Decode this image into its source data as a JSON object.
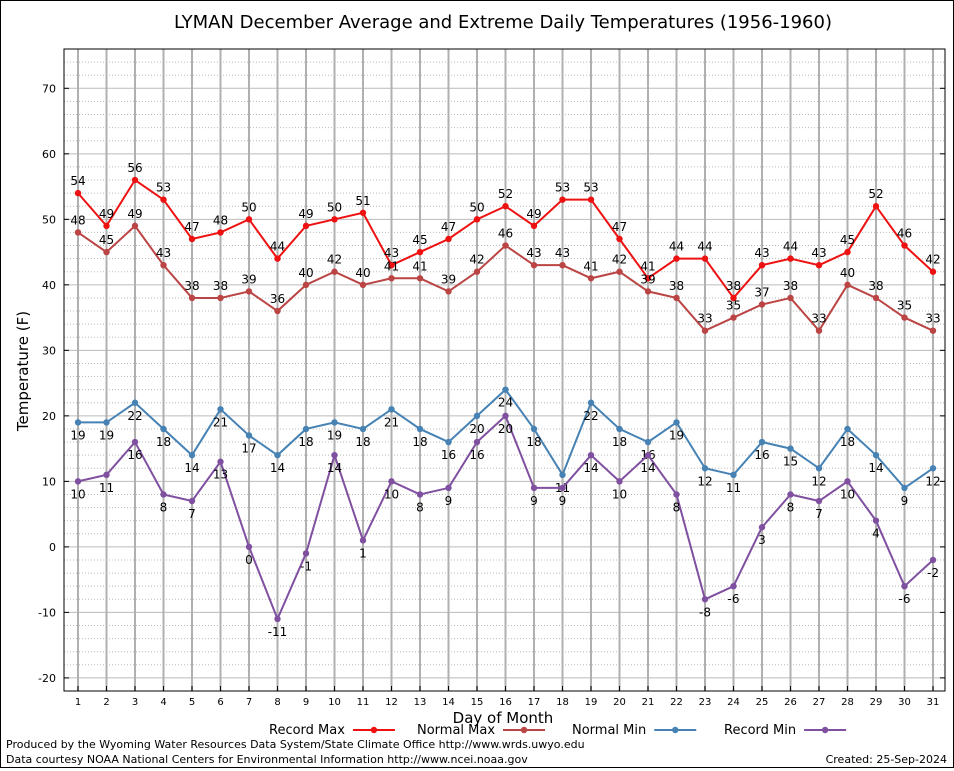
{
  "chart_data": {
    "type": "line",
    "title": "LYMAN December Average and Extreme Daily Temperatures (1956-1960)",
    "xlabel": "Day of Month",
    "ylabel": "Temperature (F)",
    "ylim": [
      -22,
      76
    ],
    "yticks": [
      -20,
      -10,
      0,
      10,
      20,
      30,
      40,
      50,
      60,
      70
    ],
    "grid": true,
    "legend_position": "bottom",
    "x": [
      1,
      2,
      3,
      4,
      5,
      6,
      7,
      8,
      9,
      10,
      11,
      12,
      13,
      14,
      15,
      16,
      17,
      18,
      19,
      20,
      21,
      22,
      23,
      24,
      25,
      26,
      27,
      28,
      29,
      30,
      31
    ],
    "series": [
      {
        "name": "Record Max",
        "color": "#ee1111",
        "values": [
          54,
          49,
          56,
          53,
          47,
          48,
          50,
          44,
          49,
          50,
          51,
          43,
          45,
          47,
          50,
          52,
          49,
          53,
          53,
          47,
          41,
          44,
          44,
          38,
          43,
          44,
          43,
          45,
          52,
          46,
          42
        ]
      },
      {
        "name": "Normal Max",
        "color": "#bb4444",
        "values": [
          48,
          45,
          49,
          43,
          38,
          38,
          39,
          36,
          40,
          42,
          40,
          41,
          41,
          39,
          42,
          46,
          43,
          43,
          41,
          42,
          39,
          38,
          33,
          35,
          37,
          38,
          33,
          40,
          38,
          35,
          33
        ]
      },
      {
        "name": "Normal Min",
        "color": "#4682b4",
        "values": [
          19,
          19,
          22,
          18,
          14,
          21,
          17,
          14,
          18,
          19,
          18,
          21,
          18,
          16,
          20,
          24,
          18,
          11,
          22,
          18,
          16,
          19,
          12,
          11,
          16,
          15,
          12,
          18,
          14,
          9,
          12
        ]
      },
      {
        "name": "Record Min",
        "color": "#8050a0",
        "values": [
          10,
          11,
          16,
          8,
          7,
          13,
          0,
          -11,
          -1,
          14,
          1,
          10,
          8,
          9,
          16,
          20,
          9,
          9,
          14,
          10,
          14,
          8,
          -8,
          -6,
          3,
          8,
          7,
          10,
          4,
          -6,
          -2
        ]
      }
    ]
  },
  "footer": {
    "produced_by": "Produced by the Wyoming Water Resources Data System/State Climate Office http://www.wrds.uwyo.edu",
    "data_courtesy": "Data courtesy NOAA National Centers for Environmental Information http://www.ncei.noaa.gov",
    "created": "Created:  25-Sep-2024"
  }
}
